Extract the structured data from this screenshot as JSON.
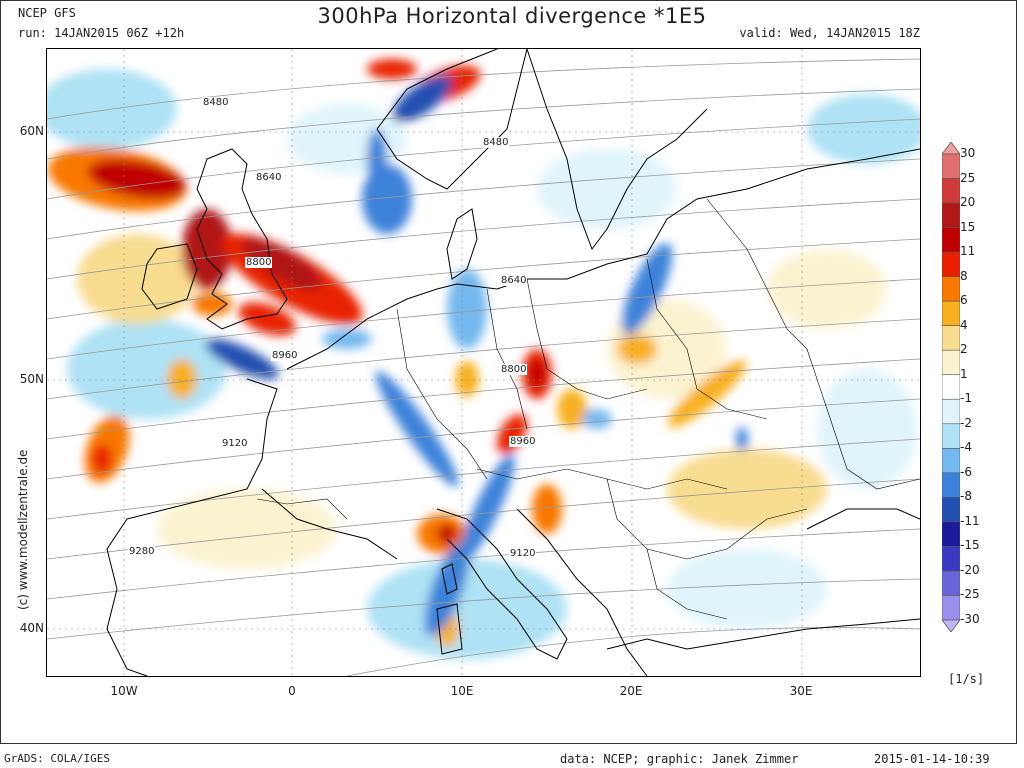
{
  "header": {
    "model": "NCEP GFS",
    "title": "300hPa Horizontal divergence *1E5",
    "run": "run: 14JAN2015 06Z +12h",
    "valid": "valid: Wed, 14JAN2015 18Z"
  },
  "footer": {
    "software": "GrADS: COLA/IGES",
    "source": "data: NCEP; graphic: Janek Zimmer",
    "timestamp": "2015-01-14-10:39"
  },
  "credit": "(c)  www.modellzentrale.de",
  "axes": {
    "lat_labels": [
      "60N",
      "50N",
      "40N"
    ],
    "lon_labels": [
      "10W",
      "0",
      "10E",
      "20E",
      "30E"
    ]
  },
  "contour_labels": [
    "8480",
    "8480",
    "8640",
    "8640",
    "8800",
    "8800",
    "8960",
    "8960",
    "9120",
    "9120",
    "9280"
  ],
  "legend": {
    "unit": "[1/s]",
    "levels": [
      "30",
      "25",
      "20",
      "15",
      "11",
      "8",
      "6",
      "4",
      "2",
      "1",
      "-1",
      "-2",
      "-4",
      "-6",
      "-8",
      "-11",
      "-15",
      "-20",
      "-25",
      "-30"
    ],
    "colors": [
      "#f0a0a0",
      "#e07070",
      "#d03a3a",
      "#b01818",
      "#c00000",
      "#e82000",
      "#f87800",
      "#f8b020",
      "#f8dc90",
      "#fbf3d0",
      "#ffffff",
      "#dff4fb",
      "#aee2f4",
      "#73b8ee",
      "#3c82da",
      "#2050b0",
      "#1a1a9a",
      "#3a3ac0",
      "#6a64d8",
      "#9a90ec",
      "#c4b6f6"
    ]
  }
}
